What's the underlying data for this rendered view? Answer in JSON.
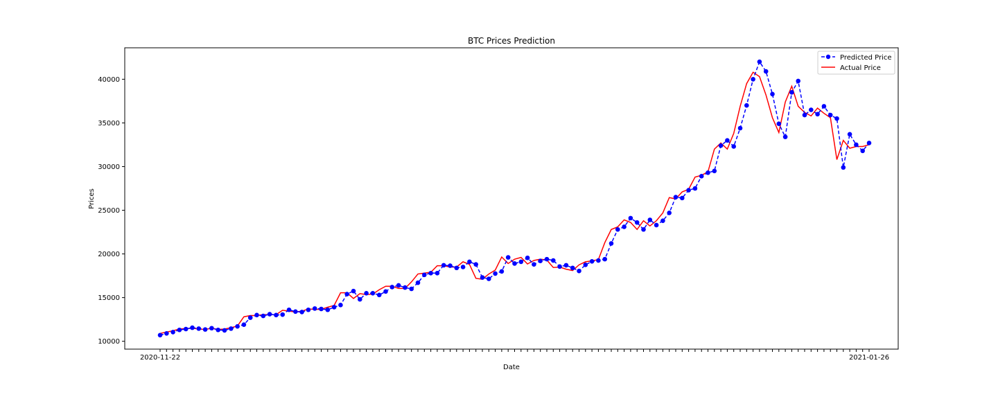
{
  "chart_data": {
    "type": "line",
    "title": "BTC Prices Prediction",
    "xlabel": "Date",
    "ylabel": "Prices",
    "ylim": [
      9100,
      43600
    ],
    "yticks": [
      10000,
      15000,
      20000,
      25000,
      30000,
      35000,
      40000
    ],
    "xtick_first": "2020-11-22",
    "xtick_last": "2021-01-26",
    "grid": false,
    "legend_position": "top-right",
    "series": [
      {
        "name": "Predicted Price",
        "color": "#0000ff",
        "style": "dashed-markers",
        "values": [
          10700,
          10900,
          11050,
          11300,
          11400,
          11550,
          11450,
          11350,
          11500,
          11300,
          11250,
          11450,
          11700,
          11900,
          12700,
          13000,
          12900,
          13100,
          13000,
          13050,
          13600,
          13400,
          13350,
          13600,
          13750,
          13700,
          13600,
          13900,
          14150,
          15400,
          15750,
          14800,
          15500,
          15500,
          15300,
          15700,
          16200,
          16400,
          16150,
          16000,
          16700,
          17600,
          17800,
          17800,
          18700,
          18650,
          18400,
          18500,
          19100,
          18800,
          17300,
          17150,
          17750,
          18000,
          19600,
          18900,
          19100,
          19550,
          18800,
          19200,
          19400,
          19250,
          18550,
          18700,
          18400,
          18050,
          18750,
          19150,
          19250,
          19400,
          21200,
          22800,
          23100,
          24100,
          23600,
          22800,
          23900,
          23300,
          23800,
          24700,
          26500,
          26400,
          27300,
          27500,
          28900,
          29300,
          29500,
          32400,
          33000,
          32300,
          34400,
          37000,
          40000,
          42000,
          40900,
          38300,
          34900,
          33400,
          38500,
          39800,
          35900,
          36500,
          36000,
          36900,
          35900,
          35500,
          29900,
          33700,
          32500,
          31800,
          32700
        ]
      },
      {
        "name": "Actual Price",
        "color": "#ff0000",
        "style": "solid",
        "values": [
          10900,
          11050,
          11200,
          11400,
          11450,
          11500,
          11400,
          11350,
          11500,
          11350,
          11400,
          11550,
          11750,
          12800,
          12950,
          12950,
          13050,
          13050,
          13050,
          13550,
          13450,
          13350,
          13450,
          13700,
          13650,
          13650,
          13900,
          14100,
          15550,
          15550,
          14900,
          15450,
          15350,
          15400,
          15900,
          16300,
          16300,
          16050,
          16050,
          16800,
          17700,
          17800,
          17900,
          18650,
          18650,
          18500,
          18500,
          19100,
          18800,
          17200,
          17100,
          17700,
          18150,
          19650,
          18900,
          19400,
          19600,
          18850,
          19250,
          19400,
          19300,
          18450,
          18500,
          18250,
          18100,
          18750,
          19100,
          19200,
          19350,
          21300,
          22800,
          23100,
          23900,
          23600,
          22800,
          23800,
          23200,
          23800,
          24700,
          26450,
          26300,
          27100,
          27400,
          28800,
          29000,
          29400,
          32000,
          32700,
          32000,
          33800,
          36900,
          39500,
          40800,
          40300,
          38200,
          35600,
          33900,
          37400,
          39200,
          36900,
          36200,
          35800,
          36700,
          36100,
          35600,
          30800,
          33000,
          32100,
          32300,
          32300,
          32500
        ]
      }
    ]
  }
}
